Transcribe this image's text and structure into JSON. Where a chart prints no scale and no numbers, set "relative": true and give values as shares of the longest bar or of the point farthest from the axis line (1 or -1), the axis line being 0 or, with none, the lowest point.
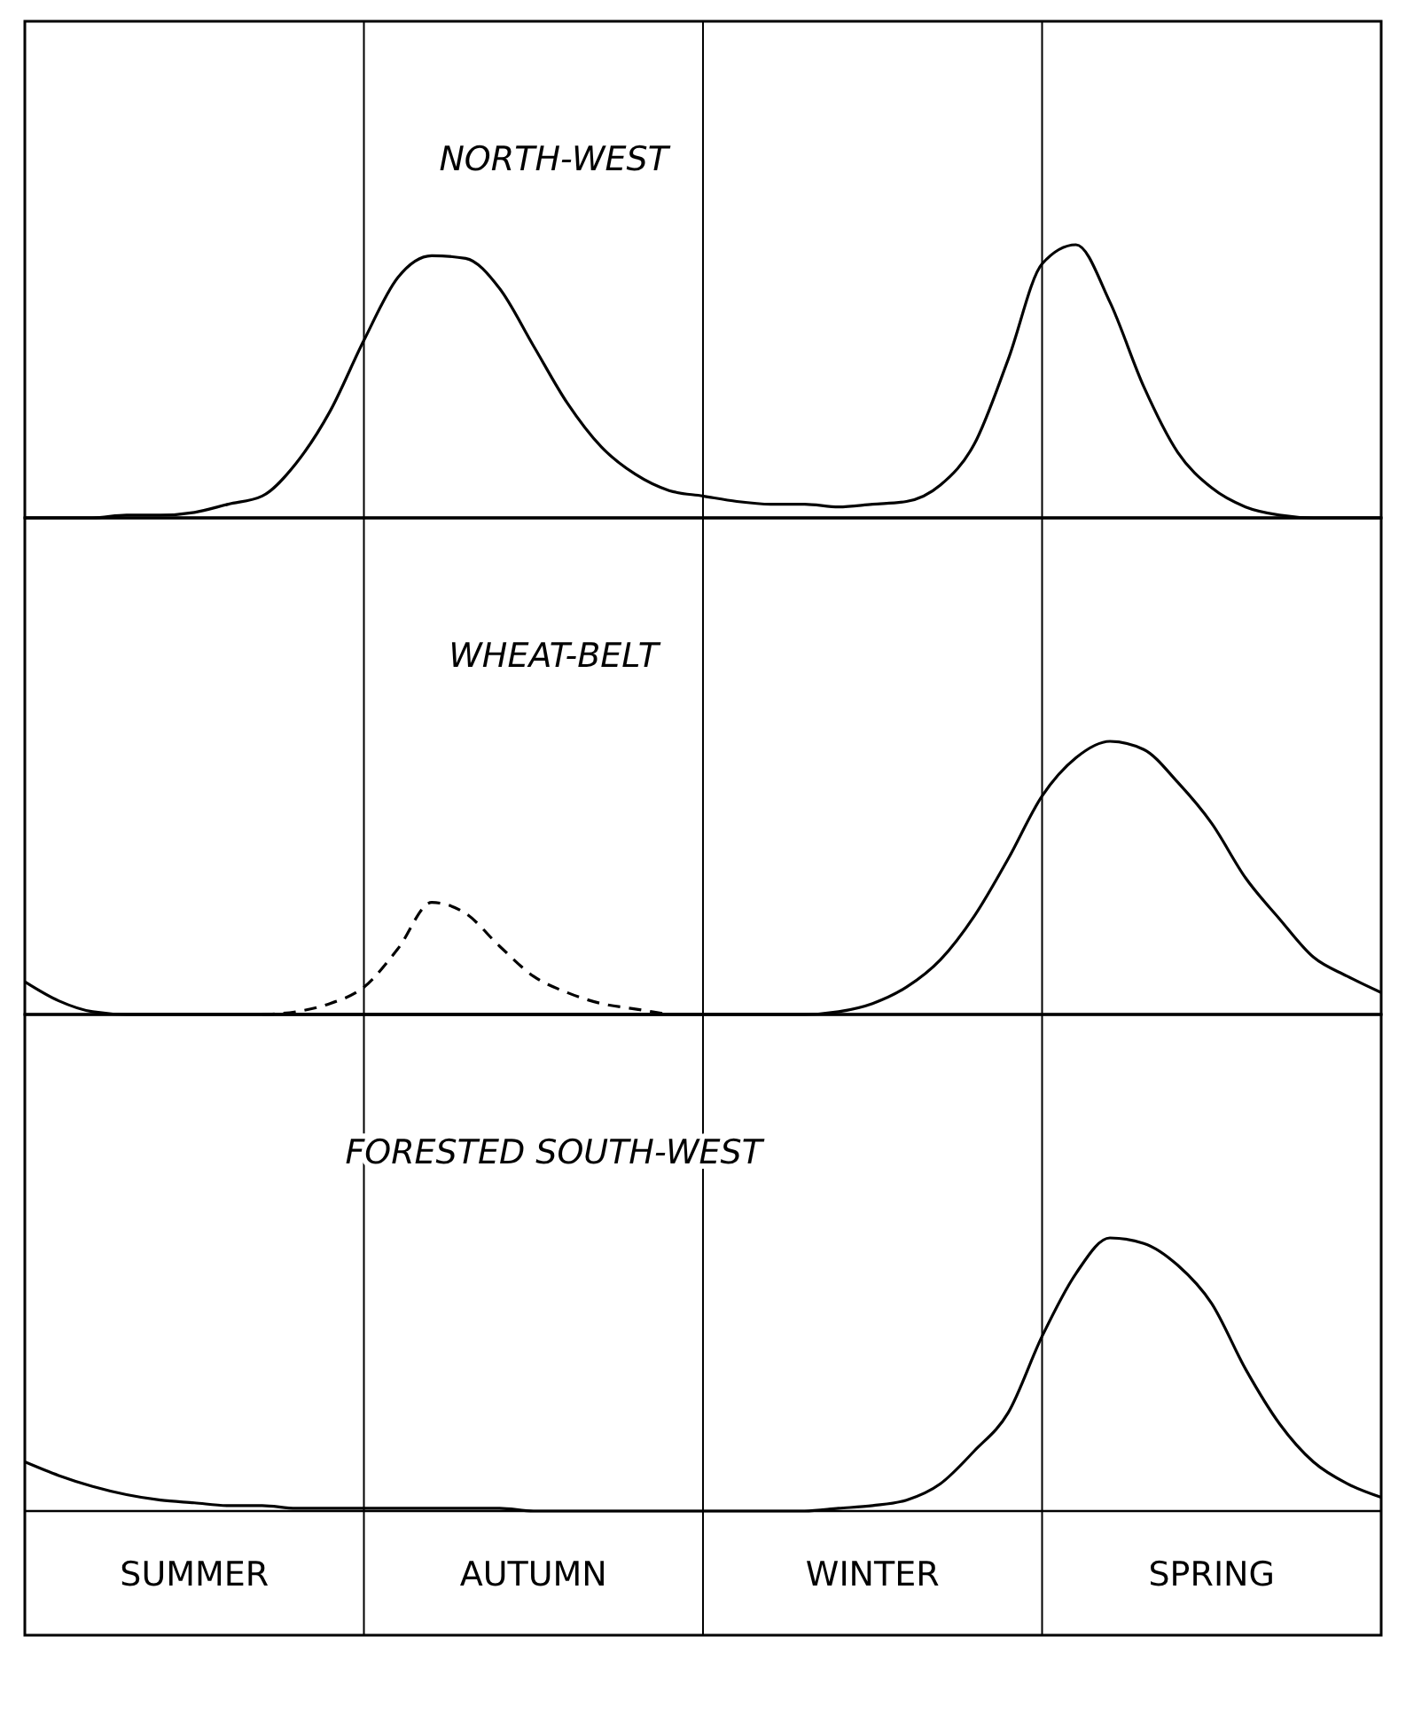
{
  "chart_data": [
    {
      "type": "line",
      "title": "NORTH-WEST",
      "relative": true,
      "categories": [
        null,
        null,
        null,
        null,
        null,
        null,
        null,
        null,
        null,
        null,
        null,
        null,
        null,
        null,
        null,
        null,
        null,
        null,
        null,
        null,
        null,
        null,
        null,
        null,
        null,
        null,
        null,
        null,
        null,
        null,
        null,
        null,
        null,
        null,
        null,
        null,
        null,
        null,
        null,
        null,
        null
      ],
      "grid": "x",
      "tick_labels": false,
      "series": [
        {
          "color": "#000000",
          "line_style": "solid",
          "values": [
            0,
            0,
            0,
            0.01,
            0.01,
            0.02,
            0.05,
            0.08,
            0.2,
            0.39,
            0.65,
            0.88,
            0.96,
            0.95,
            0.84,
            0.63,
            0.42,
            0.26,
            0.16,
            0.1,
            0.08,
            0.06,
            0.05,
            0.05,
            0.04,
            0.05,
            0.06,
            0.12,
            0.27,
            0.58,
            0.93,
            1,
            0.79,
            0.48,
            0.24,
            0.11,
            0.04,
            0.01,
            0,
            0,
            0
          ]
        }
      ]
    },
    {
      "type": "line",
      "title": "WHEAT-BELT",
      "relative": true,
      "categories": [
        null,
        null,
        null,
        null,
        null,
        null,
        null,
        null,
        null,
        null,
        null,
        null,
        null,
        null,
        null,
        null,
        null,
        null,
        null,
        null,
        null,
        null,
        null,
        null,
        null,
        null,
        null,
        null,
        null,
        null,
        null,
        null,
        null,
        null,
        null,
        null,
        null,
        null,
        null,
        null,
        null
      ],
      "grid": "x",
      "tick_labels": false,
      "series": [
        {
          "color": "#000000",
          "line_style": "solid",
          "values": [
            0.12,
            0.05,
            0.01,
            0,
            0,
            0,
            0,
            0,
            0,
            0,
            0,
            0,
            0,
            0,
            0,
            0,
            0,
            0,
            0,
            0,
            0,
            0,
            0,
            0,
            0.01,
            0.04,
            0.1,
            0.2,
            0.36,
            0.57,
            0.8,
            0.94,
            1,
            0.97,
            0.85,
            0.7,
            0.5,
            0.35,
            0.21,
            0.14,
            0.08
          ]
        },
        {
          "color": "#000000",
          "line_style": "dashed",
          "values": [
            null,
            null,
            null,
            null,
            null,
            null,
            null,
            0,
            0.01,
            0.04,
            0.1,
            0.24,
            0.41,
            0.37,
            0.25,
            0.14,
            0.08,
            0.04,
            0.02,
            0,
            null,
            null,
            null,
            null,
            null,
            null,
            null,
            null,
            null,
            null,
            null,
            null,
            null,
            null,
            null,
            null,
            null,
            null,
            null,
            null,
            null
          ]
        }
      ]
    },
    {
      "type": "line",
      "title": "FORESTED SOUTH-WEST",
      "relative": true,
      "categories": [
        null,
        null,
        null,
        null,
        null,
        "SUMMER",
        null,
        null,
        null,
        null,
        null,
        null,
        null,
        null,
        null,
        "AUTUMN",
        null,
        null,
        null,
        null,
        null,
        null,
        null,
        null,
        null,
        "WINTER",
        null,
        null,
        null,
        null,
        null,
        null,
        null,
        null,
        null,
        "SPRING",
        null,
        null,
        null,
        null,
        null
      ],
      "grid": "x",
      "tick_labels": "x",
      "series": [
        {
          "color": "#000000",
          "line_style": "solid",
          "values": [
            0.18,
            0.13,
            0.09,
            0.06,
            0.04,
            0.03,
            0.02,
            0.02,
            0.01,
            0.01,
            0.01,
            0.01,
            0.01,
            0.01,
            0.01,
            0,
            0,
            0,
            0,
            0,
            0,
            0,
            0,
            0,
            0.01,
            0.02,
            0.04,
            0.1,
            0.22,
            0.36,
            0.64,
            0.87,
            1,
            0.98,
            0.9,
            0.76,
            0.52,
            0.32,
            0.18,
            0.1,
            0.05
          ]
        }
      ]
    }
  ]
}
